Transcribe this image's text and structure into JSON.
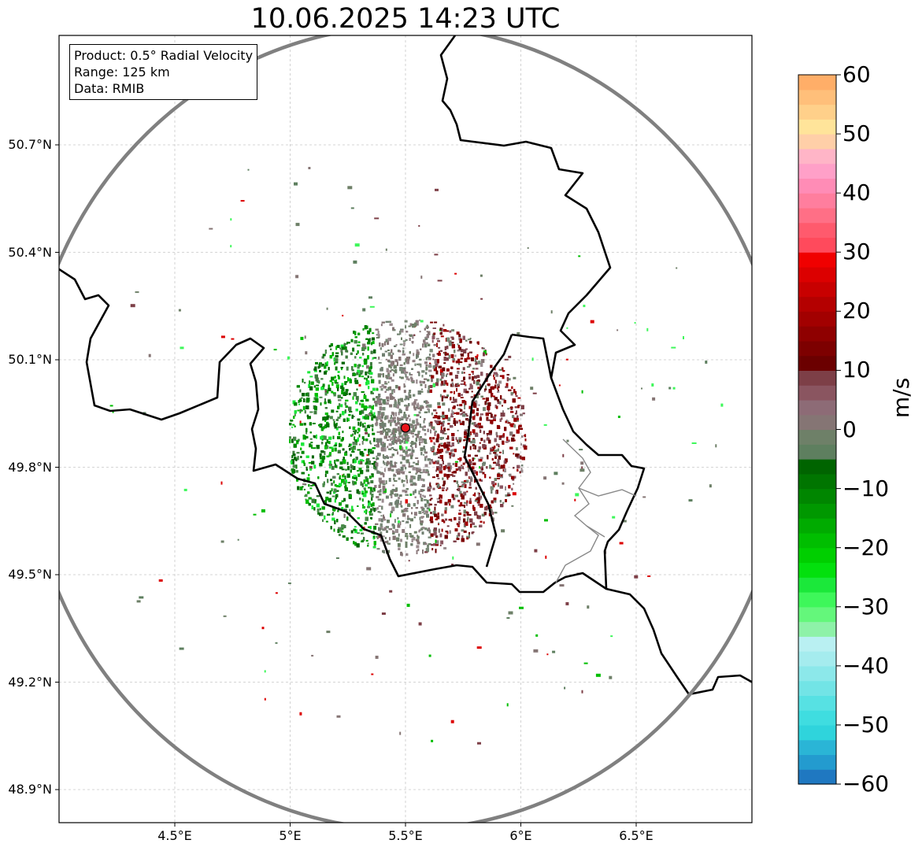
{
  "title": "10.06.2025 14:23 UTC",
  "info_box": {
    "product": "Product: 0.5° Radial Velocity",
    "range": "Range: 125 km",
    "data": "Data: RMIB"
  },
  "map": {
    "lon_range": [
      4.0,
      7.0
    ],
    "lat_range": [
      48.8,
      51.1
    ],
    "radar_site": {
      "lon": 5.5,
      "lat": 49.91,
      "color": "#e8141a"
    },
    "range_ring_km": 125,
    "lat_ticks": [
      {
        "value": 50.7,
        "label": "50.7°N"
      },
      {
        "value": 50.4,
        "label": "50.4°N"
      },
      {
        "value": 50.1,
        "label": "50.1°N"
      },
      {
        "value": 49.8,
        "label": "49.8°N"
      },
      {
        "value": 49.5,
        "label": "49.5°N"
      },
      {
        "value": 49.2,
        "label": "49.2°N"
      },
      {
        "value": 48.9,
        "label": "48.9°N"
      }
    ],
    "lon_ticks": [
      {
        "value": 4.5,
        "label": "4.5°E"
      },
      {
        "value": 5.0,
        "label": "5°E"
      },
      {
        "value": 5.5,
        "label": "5.5°E"
      },
      {
        "value": 6.0,
        "label": "6°E"
      },
      {
        "value": 6.5,
        "label": "6.5°E"
      }
    ],
    "gridlines": true
  },
  "colorbar": {
    "unit": "m/s",
    "min": -60,
    "max": 60,
    "ticks": [
      {
        "value": 60,
        "label": "60"
      },
      {
        "value": 50,
        "label": "50"
      },
      {
        "value": 40,
        "label": "40"
      },
      {
        "value": 30,
        "label": "30"
      },
      {
        "value": 20,
        "label": "20"
      },
      {
        "value": 10,
        "label": "10"
      },
      {
        "value": 0,
        "label": "0"
      },
      {
        "value": -10,
        "label": "−10"
      },
      {
        "value": -20,
        "label": "−20"
      },
      {
        "value": -30,
        "label": "−30"
      },
      {
        "value": -40,
        "label": "−40"
      },
      {
        "value": -50,
        "label": "−50"
      },
      {
        "value": -60,
        "label": "−60"
      }
    ],
    "colors": [
      "#1f78c1",
      "#239bcf",
      "#2ab5d6",
      "#2fd4dc",
      "#3fdde0",
      "#57e1e3",
      "#72e4e6",
      "#8ce8ea",
      "#a5ecee",
      "#b9f0f2",
      "#8ef2a8",
      "#64f77b",
      "#3ef75a",
      "#1be83a",
      "#03e00d",
      "#00cf00",
      "#00be00",
      "#00ab00",
      "#009800",
      "#008600",
      "#007500",
      "#006400",
      "#5e7f5f",
      "#6e8068",
      "#857574",
      "#8d6b76",
      "#8a5560",
      "#7d3f47",
      "#6b0000",
      "#7d0000",
      "#8f0000",
      "#a20000",
      "#b40000",
      "#c80000",
      "#dc0000",
      "#f00000",
      "#ff4a5c",
      "#ff5a6d",
      "#ff6f86",
      "#ff7e9e",
      "#ff8cb6",
      "#ffa0c8",
      "#ffb5c7",
      "#ffcfa8",
      "#ffe49a",
      "#ffd08a",
      "#ffbf7a",
      "#ffae68"
    ]
  },
  "echo_colors": {
    "approaching": [
      "#006400",
      "#007500",
      "#008600",
      "#00a000",
      "#00be00",
      "#1be83a",
      "#4a8a4a",
      "#3d7a3d"
    ],
    "near_zero": [
      "#6e8068",
      "#7a8a78",
      "#857574",
      "#8d7b7e",
      "#9a8c8f",
      "#707f70"
    ],
    "receding": [
      "#6b0000",
      "#7d0000",
      "#8f0000",
      "#8a5560",
      "#7d3f47",
      "#a20000"
    ],
    "scatter": [
      "#857574",
      "#6e8068",
      "#00be00",
      "#dc0000",
      "#7d3f47",
      "#5e7f5f",
      "#3ef75a"
    ]
  }
}
